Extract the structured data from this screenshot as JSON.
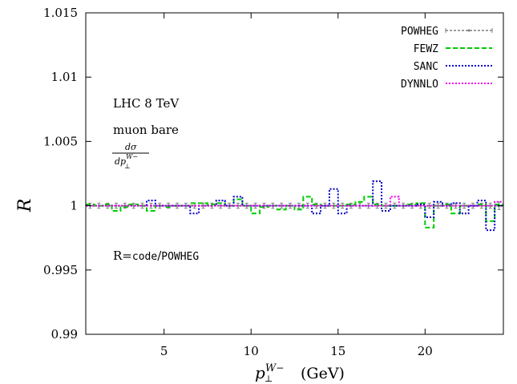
{
  "chart_data": {
    "type": "line",
    "xlabel_base": "p",
    "xlabel_sup": "W",
    "xlabel_sup_sign": "−",
    "xlabel_sub": "⊥",
    "xlabel_unit": "(GeV)",
    "ylabel": "R",
    "xlim": [
      0.5,
      24.5
    ],
    "ylim": [
      0.99,
      1.015
    ],
    "x_ticks": [
      5,
      10,
      15,
      20
    ],
    "y_ticks": [
      0.99,
      0.995,
      1.0,
      1.005,
      1.01,
      1.015
    ],
    "y_tick_labels": [
      "0.99",
      "0.995",
      "1",
      "1.005",
      "1.01",
      "1.015"
    ],
    "grid": false,
    "legend_position": "top-right",
    "annotations": {
      "line1": "LHC 8 TeV",
      "line2": "muon bare",
      "frac_num": "dσ",
      "frac_den_base": "dp",
      "frac_den_sup": "W−",
      "frac_den_sub": "⊥",
      "ratio_prefix": "R=",
      "ratio_code": "code",
      "ratio_sep": "/",
      "ratio_ref": "POWHEG"
    },
    "bin_edges": [
      0.5,
      1.0,
      1.5,
      2.0,
      2.5,
      3.0,
      3.5,
      4.0,
      4.5,
      5.0,
      5.5,
      6.0,
      6.5,
      7.0,
      7.5,
      8.0,
      8.5,
      9.0,
      9.5,
      10.0,
      10.5,
      11.0,
      11.5,
      12.0,
      12.5,
      13.0,
      13.5,
      14.0,
      14.5,
      15.0,
      15.5,
      16.0,
      16.5,
      17.0,
      17.5,
      18.0,
      18.5,
      19.0,
      19.5,
      20.0,
      20.5,
      21.0,
      21.5,
      22.0,
      22.5,
      23.0,
      23.5,
      24.0,
      24.5
    ],
    "series": [
      {
        "name": "POWHEG",
        "color": "#7f7f7f",
        "style": "solid-errorbars",
        "values": [
          1,
          1,
          1,
          1,
          1,
          1,
          1,
          1,
          1,
          1,
          1,
          1,
          1,
          1,
          1,
          1,
          1,
          1,
          1,
          1,
          1,
          1,
          1,
          1,
          1,
          1,
          1,
          1,
          1,
          1,
          1,
          1,
          1,
          1,
          1,
          1,
          1,
          1,
          1,
          1,
          1,
          1,
          1,
          1,
          1,
          1,
          1,
          1
        ],
        "errors": [
          0.0002,
          0.0002,
          0.0002,
          0.0002,
          0.0002,
          0.0002,
          0.0002,
          0.0002,
          0.0002,
          0.0002,
          0.0002,
          0.0002,
          0.0002,
          0.0002,
          0.0002,
          0.0002,
          0.0002,
          0.0002,
          0.0002,
          0.0002,
          0.0002,
          0.0002,
          0.0002,
          0.0002,
          0.0002,
          0.0002,
          0.0002,
          0.0002,
          0.0002,
          0.0002,
          0.0002,
          0.0002,
          0.0002,
          0.0002,
          0.0002,
          0.0002,
          0.0002,
          0.0002,
          0.0002,
          0.0002,
          0.0002,
          0.0002,
          0.0002,
          0.0002,
          0.0002,
          0.0002,
          0.0002,
          0.0003
        ]
      },
      {
        "name": "FEWZ",
        "color": "#00cc00",
        "style": "dashed",
        "values": [
          1.0001,
          1.0,
          1.0001,
          0.9996,
          0.9999,
          1.0001,
          1.0,
          0.9996,
          1.0,
          0.9999,
          1.0,
          1.0,
          1.0002,
          1.0002,
          1.0001,
          1.0002,
          1.0,
          1.0005,
          1.0,
          0.9994,
          0.9999,
          1.0,
          0.9997,
          1.0,
          0.9997,
          1.0007,
          1.0001,
          1.0,
          1.0,
          1.0,
          1.0001,
          1.0003,
          1.0007,
          1.0001,
          1.0,
          1.0,
          1.0,
          1.0001,
          1.0002,
          0.9983,
          1.0,
          1.0001,
          0.9994,
          1.0,
          1.0,
          1.0001,
          0.9988,
          1.0001
        ]
      },
      {
        "name": "SANC",
        "color": "#0000cc",
        "style": "dotted",
        "values": [
          1.0,
          1.0,
          1.0,
          1.0,
          1.0,
          1.0,
          1.0,
          1.0004,
          1.0,
          1.0,
          1.0,
          1.0,
          0.9994,
          1.0,
          1.0,
          1.0004,
          1.0,
          1.0007,
          1.0,
          1.0,
          1.0,
          1.0,
          1.0,
          1.0,
          1.0,
          1.0,
          0.9994,
          1.0,
          1.0013,
          0.9994,
          1.0,
          1.0,
          1.0,
          1.0019,
          0.9996,
          1.0,
          1.0,
          1.0,
          1.0001,
          0.9991,
          1.0003,
          1.0,
          1.0002,
          0.9994,
          1.0,
          1.0004,
          0.9981,
          1.0
        ]
      },
      {
        "name": "DYNNLO",
        "color": "#ee00ee",
        "style": "dotted",
        "values": [
          1.0,
          1.0,
          1.0,
          1.0,
          1.0,
          1.0,
          1.0,
          1.0,
          1.0,
          1.0,
          1.0,
          1.0,
          1.0,
          1.0,
          1.0,
          1.0,
          1.0,
          1.0,
          1.0,
          1.0,
          1.0,
          1.0,
          1.0,
          1.0,
          1.0,
          1.0,
          1.0,
          1.0,
          1.0,
          1.0,
          1.0,
          1.0,
          1.0,
          1.0,
          1.0,
          1.0007,
          1.0,
          1.0,
          1.0,
          1.0,
          1.0,
          1.0,
          1.0,
          1.0,
          1.0,
          1.0,
          1.0,
          1.0003
        ]
      }
    ]
  }
}
